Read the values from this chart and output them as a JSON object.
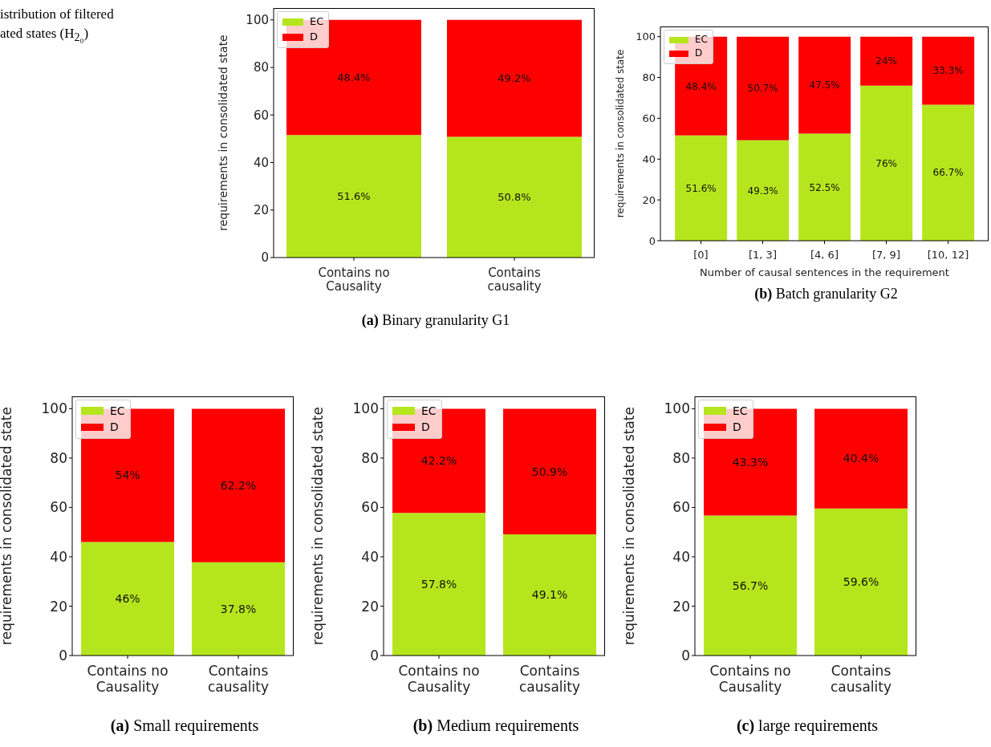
{
  "chart_data": [
    {
      "type": "bar",
      "title": "(a) Binary granularity G1",
      "ylabel": "requirements in consolidated state",
      "categories": [
        "Contains no Causality",
        "Contains causality"
      ],
      "stacked": true,
      "ylim": [
        0,
        105
      ],
      "yticks": [
        0,
        20,
        40,
        60,
        80,
        100
      ],
      "legend": "top left",
      "annotations": [
        "istribution of filtered",
        "ated states (H$_{2₀}$)"
      ],
      "series": [
        {
          "name": "EC",
          "color": "#b5e61d",
          "values": [
            51.6,
            50.8
          ],
          "value_labels": [
            "51.6%",
            "50.8%"
          ]
        },
        {
          "name": "D",
          "color": "#ff0000",
          "values": [
            48.4,
            49.2
          ],
          "value_labels": [
            "48.4%",
            "49.2%"
          ]
        }
      ]
    },
    {
      "type": "bar",
      "title": "(b) Batch granularity G2",
      "xlabel": "Number of causal sentences in the requirement",
      "ylabel": "requirements in consolidated state",
      "categories": [
        "[0]",
        "[1, 3]",
        "[4, 6]",
        "[7, 9]",
        "[10, 12]"
      ],
      "stacked": true,
      "ylim": [
        0,
        105
      ],
      "yticks": [
        0,
        20,
        40,
        60,
        80,
        100
      ],
      "legend": "top left",
      "series": [
        {
          "name": "EC",
          "color": "#b5e61d",
          "values": [
            51.6,
            49.3,
            52.5,
            76,
            66.7
          ],
          "value_labels": [
            "51.6%",
            "49.3%",
            "52.5%",
            "76%",
            "66.7%"
          ]
        },
        {
          "name": "D",
          "color": "#ff0000",
          "values": [
            48.4,
            50.7,
            47.5,
            24,
            33.3
          ],
          "value_labels": [
            "48.4%",
            "50.7%",
            "47.5%",
            "24%",
            "33.3%"
          ]
        }
      ]
    },
    {
      "type": "bar",
      "title": "(a) Small requirements",
      "ylabel": "requirements in consolidated state",
      "categories": [
        "Contains no Causality",
        "Contains causality"
      ],
      "stacked": true,
      "ylim": [
        0,
        105
      ],
      "yticks": [
        0,
        20,
        40,
        60,
        80,
        100
      ],
      "legend": "top left",
      "series": [
        {
          "name": "EC",
          "color": "#b5e61d",
          "values": [
            46,
            37.8
          ],
          "value_labels": [
            "46%",
            "37.8%"
          ]
        },
        {
          "name": "D",
          "color": "#ff0000",
          "values": [
            54,
            62.2
          ],
          "value_labels": [
            "54%",
            "62.2%"
          ]
        }
      ]
    },
    {
      "type": "bar",
      "title": "(b) Medium requirements",
      "ylabel": "requirements in consolidated state",
      "categories": [
        "Contains no Causality",
        "Contains causality"
      ],
      "stacked": true,
      "ylim": [
        0,
        105
      ],
      "yticks": [
        0,
        20,
        40,
        60,
        80,
        100
      ],
      "legend": "top left",
      "series": [
        {
          "name": "EC",
          "color": "#b5e61d",
          "values": [
            57.8,
            49.1
          ],
          "value_labels": [
            "57.8%",
            "49.1%"
          ]
        },
        {
          "name": "D",
          "color": "#ff0000",
          "values": [
            42.2,
            50.9
          ],
          "value_labels": [
            "42.2%",
            "50.9%"
          ]
        }
      ]
    },
    {
      "type": "bar",
      "title": "(c) large requirements",
      "ylabel": "requirements in consolidated state",
      "categories": [
        "Contains no Causality",
        "Contains causality"
      ],
      "stacked": true,
      "ylim": [
        0,
        105
      ],
      "yticks": [
        0,
        20,
        40,
        60,
        80,
        100
      ],
      "legend": "top left",
      "series": [
        {
          "name": "EC",
          "color": "#b5e61d",
          "values": [
            56.7,
            59.6
          ],
          "value_labels": [
            "56.7%",
            "59.6%"
          ]
        },
        {
          "name": "D",
          "color": "#ff0000",
          "values": [
            43.3,
            40.4
          ],
          "value_labels": [
            "43.3%",
            "40.4%"
          ]
        }
      ]
    }
  ]
}
